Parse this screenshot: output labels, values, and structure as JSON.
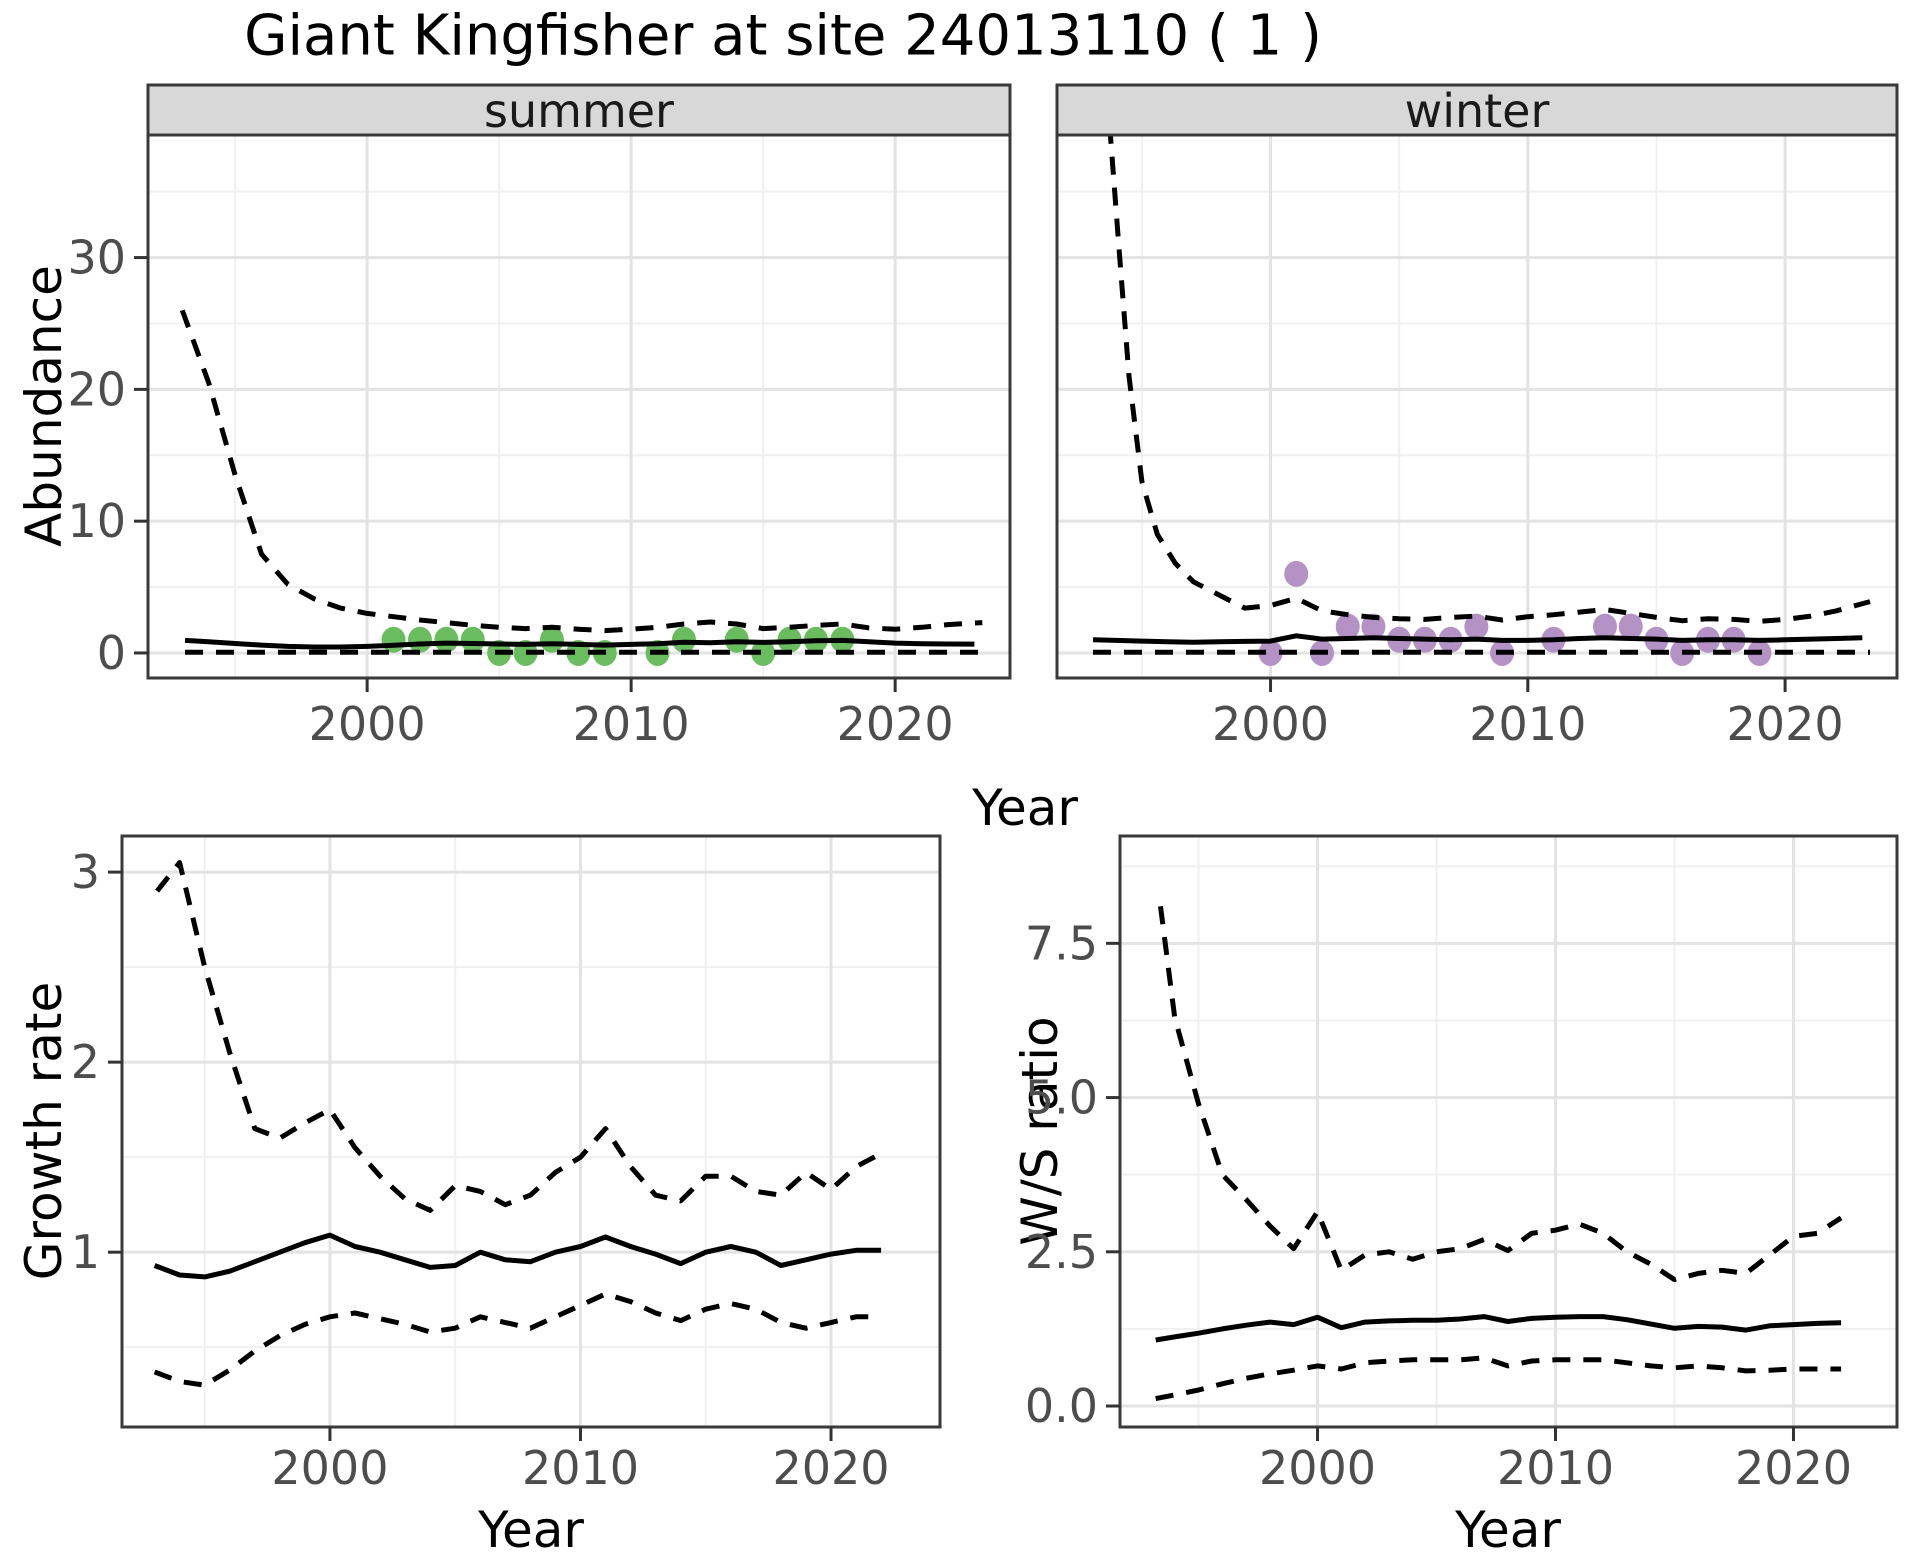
{
  "title": "Giant Kingfisher at site 24013110 ( 1 )",
  "facets": [
    "summer",
    "winter"
  ],
  "axis_labels": {
    "abundance": "Abundance",
    "growth_rate": "Growth rate",
    "ws_ratio": "W/S ratio",
    "year": "Year"
  },
  "colors": {
    "summer_points": "#6abd5f",
    "winter_points": "#b592c6",
    "line": "#000000",
    "grid_major": "#e3e3e3",
    "grid_minor": "#f0f0f0",
    "strip_fill": "#d8d8d8",
    "panel_border": "#3a3a3a",
    "tick_mark": "#333333"
  },
  "chart_data": [
    {
      "id": "abundance-summer",
      "type": "line",
      "facet": "summer",
      "ylabel": "Abundance",
      "xlabel": "Year",
      "xlim": [
        1991.7,
        2024.35
      ],
      "ylim": [
        -1.9,
        39.3
      ],
      "xticks": [
        2000,
        2010,
        2020
      ],
      "xtick_labels": [
        "2000",
        "2010",
        "2020"
      ],
      "xminor": [
        1995,
        2005,
        2015
      ],
      "yticks": [
        0,
        10,
        20,
        30
      ],
      "ytick_labels": [
        "0",
        "10",
        "20",
        "30"
      ],
      "yminor": [
        5,
        15,
        25,
        35
      ],
      "show_ytick_labels": true,
      "series": [
        {
          "name": "upper-ci",
          "style": "dashed",
          "x": [
            1993,
            1994,
            1995,
            1996,
            1997,
            1998,
            1999,
            2000,
            2001,
            2002,
            2003,
            2004,
            2005,
            2006,
            2007,
            2008,
            2009,
            2010,
            2011,
            2012,
            2013,
            2014,
            2015,
            2016,
            2017,
            2018,
            2019,
            2020,
            2021,
            2022,
            2023.3
          ],
          "y": [
            26,
            20.5,
            13.5,
            7.5,
            5.2,
            4.1,
            3.4,
            3.0,
            2.75,
            2.5,
            2.3,
            2.1,
            1.95,
            1.85,
            1.95,
            1.8,
            1.7,
            1.8,
            1.95,
            2.2,
            2.35,
            2.2,
            1.85,
            1.95,
            2.1,
            2.2,
            1.9,
            1.8,
            1.95,
            2.15,
            2.3
          ]
        },
        {
          "name": "median",
          "style": "solid",
          "x": [
            1993.1,
            1994,
            1995,
            1996,
            1997,
            1998,
            1999,
            2000,
            2001,
            2002,
            2003,
            2004,
            2005,
            2006,
            2007,
            2008,
            2009,
            2010,
            2011,
            2012,
            2013,
            2014,
            2015,
            2016,
            2017,
            2018,
            2019,
            2020,
            2021,
            2022,
            2023
          ],
          "y": [
            0.95,
            0.85,
            0.72,
            0.6,
            0.5,
            0.45,
            0.45,
            0.5,
            0.58,
            0.68,
            0.75,
            0.72,
            0.68,
            0.65,
            0.7,
            0.65,
            0.6,
            0.65,
            0.7,
            0.82,
            0.78,
            0.85,
            0.8,
            0.85,
            0.92,
            0.95,
            0.85,
            0.75,
            0.7,
            0.68,
            0.67
          ]
        },
        {
          "name": "lower-ci",
          "style": "dashed",
          "x": [
            1993.1,
            2023.3
          ],
          "y": [
            0.05,
            0.05
          ]
        }
      ],
      "points": {
        "color_key": "summer_points",
        "x": [
          2001,
          2002,
          2003,
          2004,
          2005,
          2006,
          2007,
          2008,
          2009,
          2011,
          2012,
          2014,
          2015,
          2016,
          2017,
          2018
        ],
        "y": [
          1,
          1,
          1,
          1,
          0,
          0,
          1,
          0,
          0,
          0,
          1,
          1,
          0,
          1,
          1,
          1
        ]
      }
    },
    {
      "id": "abundance-winter",
      "type": "line",
      "facet": "winter",
      "ylabel": "Abundance",
      "xlabel": "Year",
      "xlim": [
        1991.7,
        2024.35
      ],
      "ylim": [
        -1.9,
        39.3
      ],
      "xticks": [
        2000,
        2010,
        2020
      ],
      "xtick_labels": [
        "2000",
        "2010",
        "2020"
      ],
      "xminor": [
        1995,
        2005,
        2015
      ],
      "yticks": [
        0,
        10,
        20,
        30
      ],
      "ytick_labels": [
        "0",
        "10",
        "20",
        "30"
      ],
      "yminor": [
        5,
        15,
        25,
        35
      ],
      "show_ytick_labels": false,
      "series": [
        {
          "name": "upper-ci",
          "style": "dashed",
          "x": [
            1993.75,
            1994.1,
            1994.5,
            1995,
            1995.6,
            1996.3,
            1997,
            1998,
            1999,
            2000,
            2001,
            2002,
            2003,
            2004,
            2005,
            2006,
            2007,
            2008,
            2009,
            2010,
            2011,
            2012,
            2013,
            2014,
            2015,
            2016,
            2017,
            2018,
            2019,
            2020,
            2021,
            2022,
            2023.3
          ],
          "y": [
            40,
            31,
            21,
            13,
            9,
            6.8,
            5.4,
            4.4,
            3.4,
            3.6,
            4.15,
            3.2,
            2.9,
            2.7,
            2.6,
            2.55,
            2.7,
            2.8,
            2.5,
            2.75,
            2.9,
            3.1,
            3.3,
            3.0,
            2.7,
            2.45,
            2.6,
            2.55,
            2.4,
            2.55,
            2.8,
            3.2,
            3.9
          ]
        },
        {
          "name": "median",
          "style": "solid",
          "x": [
            1993.1,
            1994,
            1995,
            1996,
            1997,
            1998,
            1999,
            2000,
            2001,
            2002,
            2003,
            2004,
            2005,
            2006,
            2007,
            2008,
            2009,
            2010,
            2011,
            2012,
            2013,
            2014,
            2015,
            2016,
            2017,
            2018,
            2019,
            2020,
            2021,
            2022,
            2023
          ],
          "y": [
            1.0,
            0.95,
            0.9,
            0.85,
            0.82,
            0.85,
            0.88,
            0.9,
            1.3,
            1.05,
            1.1,
            1.15,
            1.1,
            1.05,
            1.0,
            1.05,
            0.95,
            0.95,
            1.0,
            1.1,
            1.15,
            1.1,
            1.05,
            0.95,
            1.0,
            1.0,
            0.95,
            1.0,
            1.05,
            1.1,
            1.15
          ]
        },
        {
          "name": "lower-ci",
          "style": "dashed",
          "x": [
            1993.1,
            2023.3
          ],
          "y": [
            0.05,
            0.05
          ]
        }
      ],
      "points": {
        "color_key": "winter_points",
        "x": [
          2000,
          2001,
          2002,
          2003,
          2004,
          2005,
          2006,
          2007,
          2008,
          2009,
          2011,
          2013,
          2014,
          2015,
          2016,
          2017,
          2018,
          2019
        ],
        "y": [
          0,
          6,
          0,
          2,
          2,
          1,
          1,
          1,
          2,
          0,
          1,
          2,
          2,
          1,
          0,
          1,
          1,
          0
        ]
      }
    },
    {
      "id": "growth",
      "type": "line",
      "ylabel": "Growth rate",
      "xlabel": "Year",
      "xlim": [
        1991.7,
        2024.35
      ],
      "ylim": [
        0.08,
        3.19
      ],
      "xticks": [
        2000,
        2010,
        2020
      ],
      "xtick_labels": [
        "2000",
        "2010",
        "2020"
      ],
      "xminor": [
        1995,
        2005,
        2015
      ],
      "yticks": [
        1,
        2,
        3
      ],
      "ytick_labels": [
        "1",
        "2",
        "3"
      ],
      "yminor": [
        0.5,
        1.5,
        2.5
      ],
      "show_ytick_labels": true,
      "series": [
        {
          "name": "upper-ci",
          "style": "dashed",
          "x": [
            1993.1,
            1994,
            1995,
            1996,
            1997,
            1998,
            1999,
            2000,
            2001,
            2002,
            2003,
            2004,
            2005,
            2006,
            2007,
            2008,
            2009,
            2010,
            2011,
            2012,
            2013,
            2014,
            2015,
            2016,
            2017,
            2018,
            2019,
            2020,
            2021,
            2022
          ],
          "y": [
            2.9,
            3.05,
            2.5,
            2.05,
            1.65,
            1.6,
            1.68,
            1.75,
            1.55,
            1.4,
            1.28,
            1.22,
            1.35,
            1.32,
            1.25,
            1.3,
            1.42,
            1.5,
            1.65,
            1.45,
            1.3,
            1.27,
            1.4,
            1.4,
            1.32,
            1.3,
            1.42,
            1.33,
            1.45,
            1.52
          ]
        },
        {
          "name": "median",
          "style": "solid",
          "x": [
            1993,
            1994,
            1995,
            1996,
            1997,
            1998,
            1999,
            2000,
            2001,
            2002,
            2003,
            2004,
            2005,
            2006,
            2007,
            2008,
            2009,
            2010,
            2011,
            2012,
            2013,
            2014,
            2015,
            2016,
            2017,
            2018,
            2019,
            2020,
            2021,
            2022
          ],
          "y": [
            0.93,
            0.88,
            0.87,
            0.9,
            0.95,
            1.0,
            1.05,
            1.09,
            1.03,
            1.0,
            0.96,
            0.92,
            0.93,
            1.0,
            0.96,
            0.95,
            1.0,
            1.03,
            1.08,
            1.03,
            0.99,
            0.94,
            1.0,
            1.03,
            1.0,
            0.93,
            0.96,
            0.99,
            1.01,
            1.01
          ]
        },
        {
          "name": "lower-ci",
          "style": "dashed",
          "x": [
            1993,
            1994,
            1995,
            1996,
            1997,
            1998,
            1999,
            2000,
            2001,
            2002,
            2003,
            2004,
            2005,
            2006,
            2007,
            2008,
            2009,
            2010,
            2011,
            2012,
            2013,
            2014,
            2015,
            2016,
            2017,
            2018,
            2019,
            2020,
            2021,
            2022
          ],
          "y": [
            0.37,
            0.32,
            0.3,
            0.38,
            0.48,
            0.56,
            0.62,
            0.66,
            0.68,
            0.65,
            0.62,
            0.58,
            0.6,
            0.66,
            0.63,
            0.6,
            0.66,
            0.72,
            0.78,
            0.74,
            0.68,
            0.64,
            0.7,
            0.73,
            0.7,
            0.63,
            0.6,
            0.63,
            0.66,
            0.66
          ]
        }
      ]
    },
    {
      "id": "ws",
      "type": "line",
      "ylabel": "W/S ratio",
      "xlabel": "Year",
      "xlim": [
        1991.7,
        2024.35
      ],
      "ylim": [
        -0.34,
        9.24
      ],
      "xticks": [
        2000,
        2010,
        2020
      ],
      "xtick_labels": [
        "2000",
        "2010",
        "2020"
      ],
      "xminor": [
        1995,
        2005,
        2015
      ],
      "yticks": [
        0,
        2.5,
        5,
        7.5
      ],
      "ytick_labels": [
        "0.0",
        "2.5",
        "5.0",
        "7.5"
      ],
      "yminor": [
        1.25,
        3.75,
        6.25,
        8.75
      ],
      "show_ytick_labels": true,
      "series": [
        {
          "name": "upper-ci",
          "style": "dashed",
          "x": [
            1993.4,
            1994,
            1995,
            1996,
            1997,
            1998,
            1999,
            2000,
            2001,
            2002,
            2003,
            2004,
            2005,
            2006,
            2007,
            2008,
            2009,
            2010,
            2011,
            2012,
            2013,
            2014,
            2015,
            2016,
            2017,
            2018,
            2019,
            2020,
            2021,
            2022
          ],
          "y": [
            8.1,
            6.3,
            4.9,
            3.75,
            3.35,
            2.92,
            2.55,
            3.15,
            2.2,
            2.45,
            2.5,
            2.38,
            2.5,
            2.55,
            2.7,
            2.52,
            2.8,
            2.85,
            2.95,
            2.8,
            2.5,
            2.3,
            2.05,
            2.15,
            2.2,
            2.15,
            2.45,
            2.75,
            2.8,
            3.05
          ]
        },
        {
          "name": "median",
          "style": "solid",
          "x": [
            1993.2,
            1994,
            1995,
            1996,
            1997,
            1998,
            1999,
            2000,
            2001,
            2002,
            2003,
            2004,
            2005,
            2006,
            2007,
            2008,
            2009,
            2010,
            2011,
            2012,
            2013,
            2014,
            2015,
            2016,
            2017,
            2018,
            2019,
            2020,
            2021,
            2022
          ],
          "y": [
            1.07,
            1.12,
            1.18,
            1.25,
            1.31,
            1.36,
            1.32,
            1.44,
            1.27,
            1.36,
            1.38,
            1.39,
            1.39,
            1.41,
            1.45,
            1.37,
            1.42,
            1.44,
            1.45,
            1.45,
            1.4,
            1.33,
            1.26,
            1.29,
            1.28,
            1.23,
            1.3,
            1.32,
            1.34,
            1.35
          ]
        },
        {
          "name": "lower-ci",
          "style": "dashed",
          "x": [
            1993.2,
            1994,
            1995,
            1996,
            1997,
            1998,
            1999,
            2000,
            2001,
            2002,
            2003,
            2004,
            2005,
            2006,
            2007,
            2008,
            2009,
            2010,
            2011,
            2012,
            2013,
            2014,
            2015,
            2016,
            2017,
            2018,
            2019,
            2020,
            2021,
            2022
          ],
          "y": [
            0.12,
            0.18,
            0.26,
            0.36,
            0.45,
            0.52,
            0.58,
            0.65,
            0.6,
            0.7,
            0.73,
            0.75,
            0.75,
            0.75,
            0.78,
            0.65,
            0.73,
            0.75,
            0.75,
            0.75,
            0.7,
            0.65,
            0.62,
            0.65,
            0.62,
            0.57,
            0.58,
            0.6,
            0.6,
            0.6
          ]
        }
      ]
    }
  ]
}
